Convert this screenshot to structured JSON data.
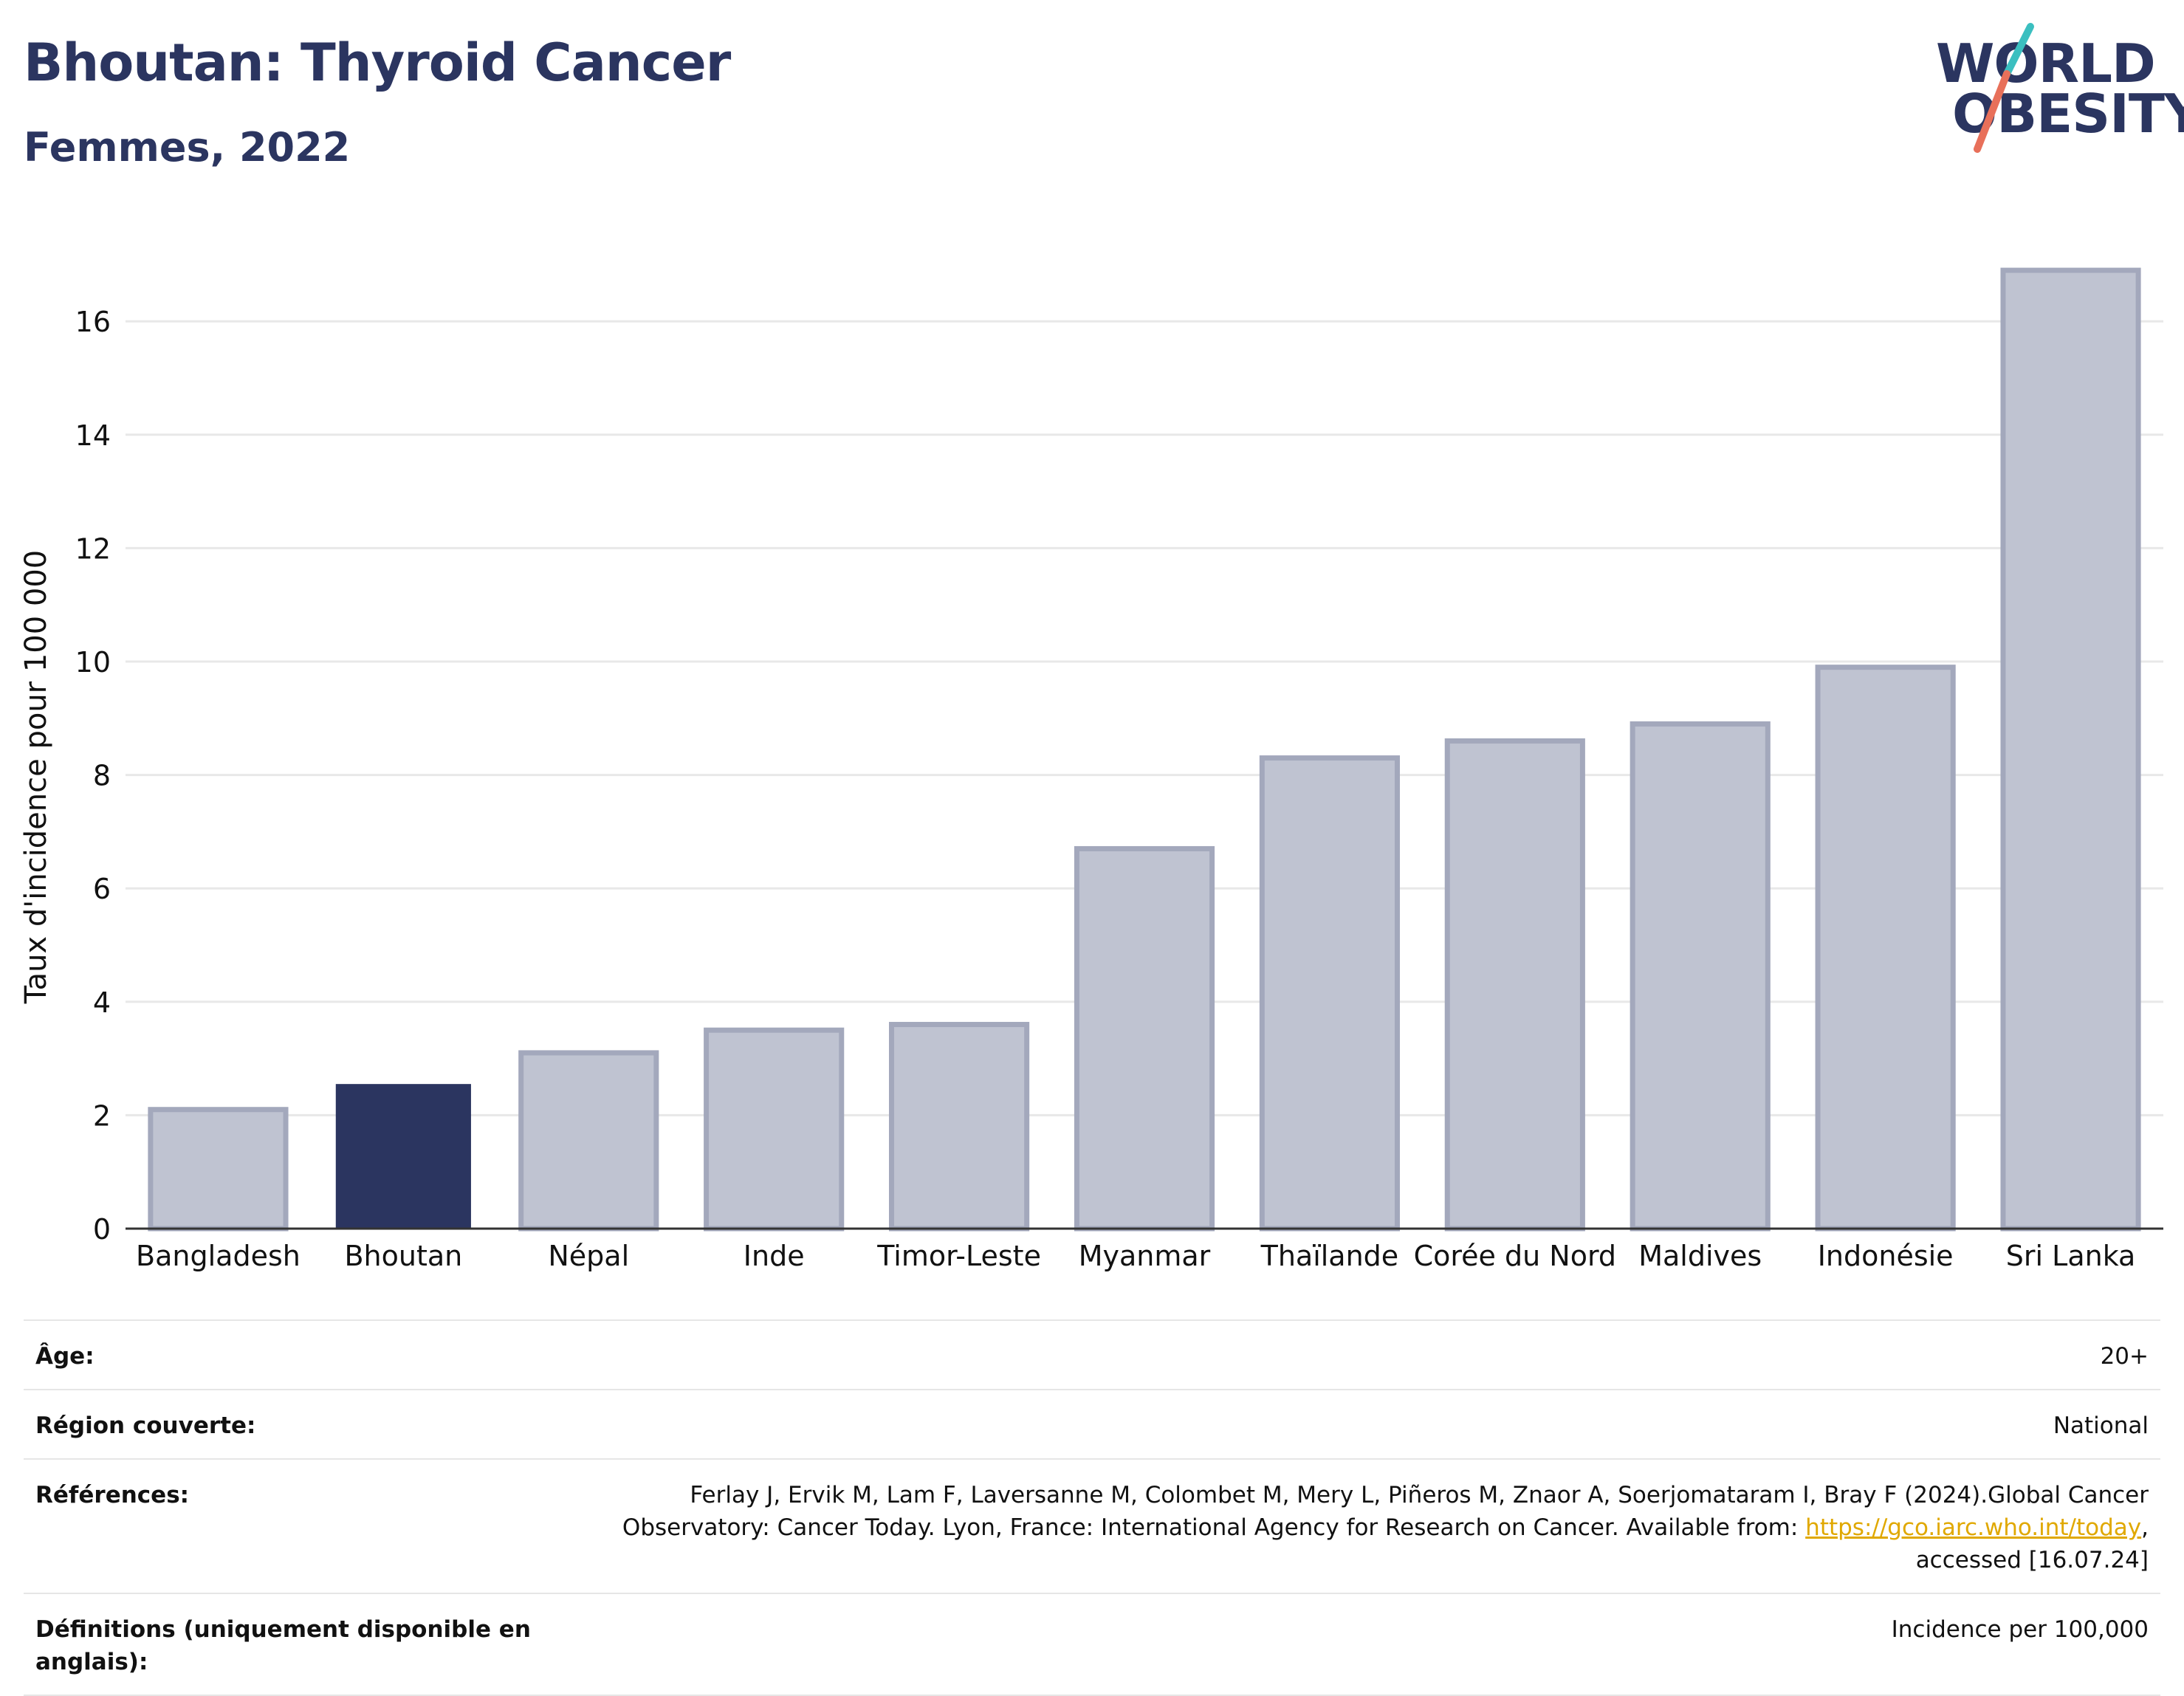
{
  "header": {
    "title": "Bhoutan: Thyroid Cancer",
    "subtitle": "Femmes, 2022"
  },
  "logo": {
    "line1": "WORLD",
    "line2": "OBESITY",
    "colors": {
      "text": "#2b3560",
      "slash_top": "#3bbfc0",
      "slash_bottom": "#e8705a"
    }
  },
  "chart_data": {
    "type": "bar",
    "categories": [
      "Bangladesh",
      "Bhoutan",
      "Népal",
      "Inde",
      "Timor-Leste",
      "Myanmar",
      "Thaïlande",
      "Corée du Nord",
      "Maldives",
      "Indonésie",
      "Sri Lanka"
    ],
    "values": [
      2.1,
      2.55,
      3.1,
      3.5,
      3.6,
      6.7,
      8.3,
      8.6,
      8.9,
      9.9,
      16.9
    ],
    "highlight": "Bhoutan",
    "ylabel": "Taux d'incidence pour 100 000",
    "xlabel": "",
    "ylim": [
      0,
      17.5
    ],
    "yticks": [
      0,
      2,
      4,
      6,
      8,
      10,
      12,
      14,
      16
    ],
    "grid": true,
    "colors": {
      "bar": "#bfc3d1",
      "bar_edge": "#a3a8bc",
      "highlight": "#2b3560",
      "grid": "#e8e8e8",
      "axis": "#333333"
    }
  },
  "info": {
    "age_label": "Âge:",
    "age_value": "20+",
    "region_label": "Région couverte:",
    "region_value": "National",
    "references_label": "Références:",
    "references_text_1": "Ferlay J, Ervik M, Lam F, Laversanne M, Colombet M, Mery L, Piñeros M, Znaor A, Soerjomataram I, Bray F (2024).Global Cancer Observatory: Cancer Today. Lyon, France: International Agency for Research on Cancer. Available from: ",
    "references_link": "https://gco.iarc.who.int/today",
    "references_text_2": ", accessed [16.07.24]",
    "definitions_label": "Définitions (uniquement disponible en anglais):",
    "definitions_value": "Incidence per 100,000"
  }
}
